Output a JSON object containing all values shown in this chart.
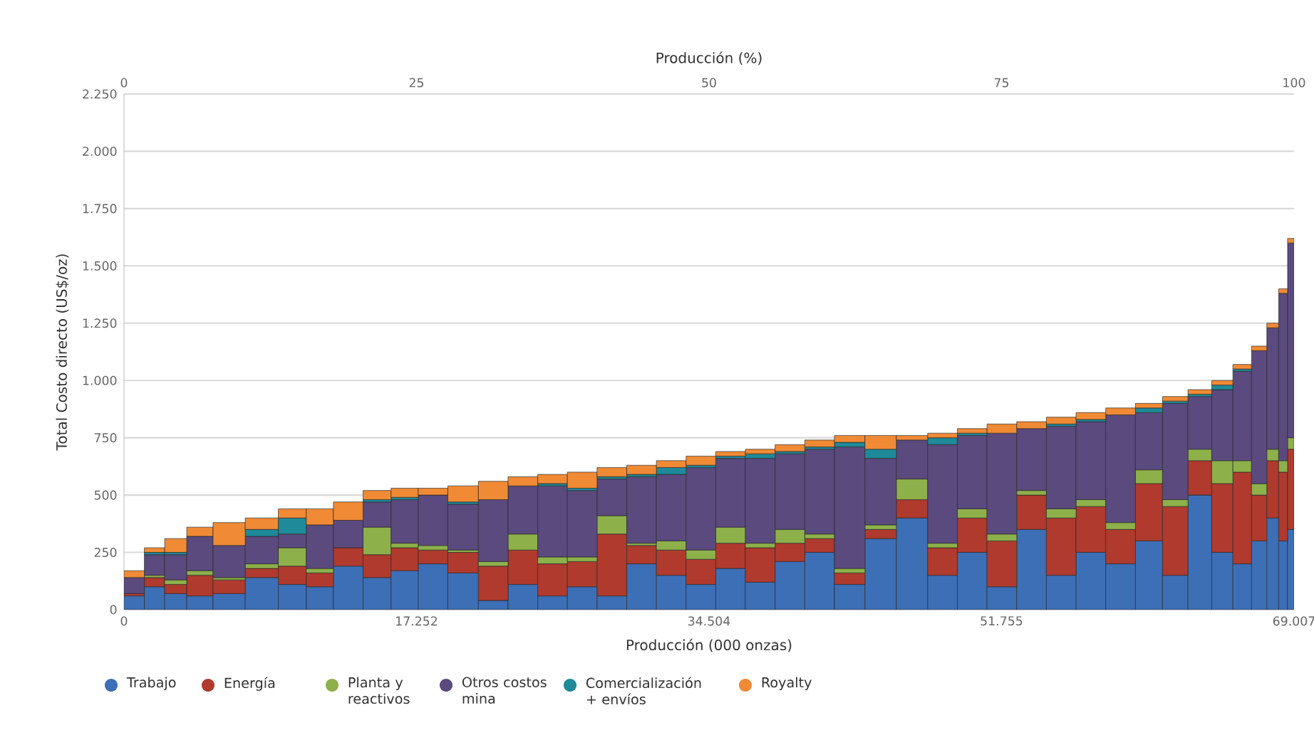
{
  "chart_data": {
    "type": "bar",
    "stacked": true,
    "xlabel": "Producción (000 onzas)",
    "x2label": "Producción  (%)",
    "ylabel": "Total Costo directo (US$/oz)",
    "x": [
      600,
      1800,
      3000,
      4400,
      6100,
      8200,
      10000,
      11500,
      13200,
      15000,
      16500,
      18200,
      20000,
      21800,
      23500,
      25300,
      27000,
      28800,
      30500,
      32300,
      34000,
      35800,
      37500,
      39300,
      41000,
      42800,
      44600,
      46500,
      48300,
      50000,
      51800,
      53500,
      55300,
      57000,
      58800,
      60500,
      62000,
      63500,
      64800,
      66000,
      67000,
      67800,
      68400,
      68850
    ],
    "series": [
      {
        "name": "Trabajo",
        "color": "#3d6fb6",
        "values": [
          60,
          100,
          70,
          60,
          70,
          140,
          110,
          100,
          190,
          140,
          170,
          200,
          160,
          40,
          110,
          60,
          100,
          60,
          200,
          150,
          110,
          180,
          120,
          210,
          250,
          110,
          310,
          400,
          150,
          250,
          100,
          350,
          150,
          250,
          200,
          300,
          150,
          500,
          250,
          200,
          300,
          400,
          300,
          350
        ]
      },
      {
        "name": "Energía",
        "color": "#b03a2e",
        "values": [
          10,
          40,
          40,
          90,
          60,
          40,
          80,
          60,
          80,
          100,
          100,
          60,
          90,
          150,
          150,
          140,
          110,
          270,
          80,
          110,
          110,
          110,
          150,
          80,
          60,
          50,
          40,
          80,
          120,
          150,
          200,
          150,
          250,
          200,
          150,
          250,
          300,
          150,
          300,
          400,
          200,
          250,
          300,
          350
        ]
      },
      {
        "name": "Planta y reactivos",
        "color": "#8db04a",
        "values": [
          0,
          10,
          20,
          20,
          10,
          20,
          80,
          20,
          0,
          120,
          20,
          20,
          10,
          20,
          70,
          30,
          20,
          80,
          10,
          40,
          40,
          70,
          20,
          60,
          20,
          20,
          20,
          90,
          20,
          40,
          30,
          20,
          40,
          30,
          30,
          60,
          30,
          50,
          100,
          50,
          50,
          50,
          50,
          50
        ]
      },
      {
        "name": "Otros costos mina",
        "color": "#5b4a7e",
        "values": [
          70,
          90,
          110,
          150,
          140,
          120,
          60,
          190,
          120,
          110,
          190,
          220,
          200,
          270,
          210,
          310,
          290,
          160,
          290,
          290,
          360,
          300,
          370,
          330,
          370,
          530,
          290,
          170,
          430,
          320,
          440,
          270,
          360,
          340,
          470,
          250,
          420,
          230,
          310,
          390,
          580,
          530,
          730,
          850
        ]
      },
      {
        "name": "Comercialización + envíos",
        "color": "#1f8a99",
        "values": [
          0,
          10,
          10,
          0,
          0,
          30,
          70,
          0,
          0,
          10,
          10,
          0,
          10,
          0,
          0,
          10,
          10,
          10,
          10,
          30,
          10,
          10,
          20,
          10,
          10,
          20,
          40,
          0,
          30,
          10,
          0,
          0,
          10,
          10,
          0,
          20,
          10,
          10,
          20,
          10,
          0,
          0,
          0,
          0
        ]
      },
      {
        "name": "Royalty",
        "color": "#f08a35",
        "values": [
          30,
          20,
          60,
          40,
          100,
          50,
          40,
          70,
          80,
          40,
          40,
          30,
          70,
          80,
          40,
          40,
          70,
          40,
          40,
          30,
          40,
          20,
          20,
          30,
          30,
          30,
          60,
          20,
          20,
          20,
          40,
          30,
          30,
          30,
          30,
          20,
          20,
          20,
          20,
          20,
          20,
          20,
          20,
          20
        ]
      }
    ],
    "xlim": [
      0,
      69007
    ],
    "xticks": [
      0,
      {
        "value": 17252,
        "label": "17.252"
      },
      {
        "value": 34504,
        "label": "34.504"
      },
      {
        "value": 51755,
        "label": "51.755"
      },
      {
        "value": 69007,
        "label": "69.007"
      }
    ],
    "x2lim": [
      0,
      100
    ],
    "x2ticks": [
      0,
      25,
      50,
      75,
      100
    ],
    "ylim": [
      0,
      2250
    ],
    "yticks": [
      0,
      250,
      500,
      750,
      {
        "value": 1000,
        "label": "1.000"
      },
      {
        "value": 1250,
        "label": "1.250"
      },
      {
        "value": 1500,
        "label": "1.500"
      },
      {
        "value": 1750,
        "label": "1.750"
      },
      {
        "value": 2000,
        "label": "2.000"
      },
      {
        "value": 2250,
        "label": "2.250"
      }
    ],
    "grid": "y",
    "legend": "bottom"
  }
}
